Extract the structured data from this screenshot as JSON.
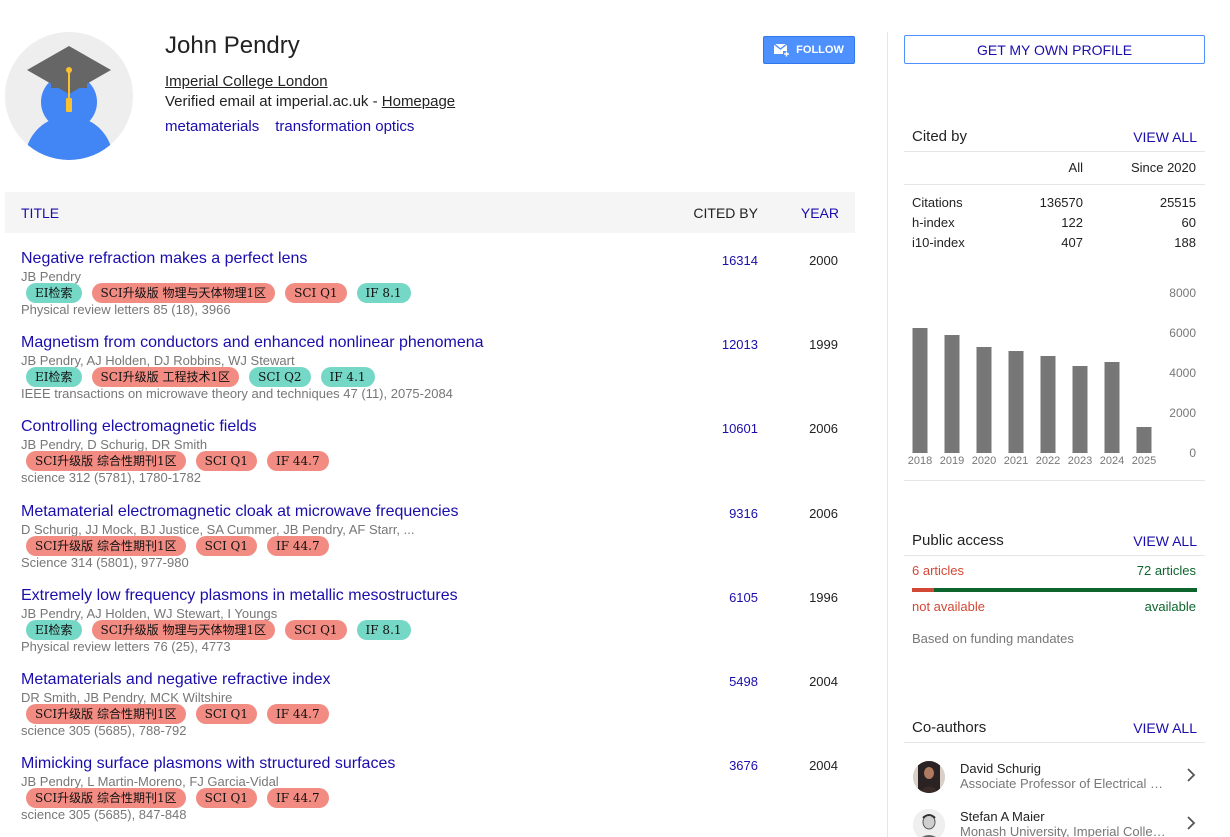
{
  "profile": {
    "name": "John Pendry",
    "affiliation": "Imperial College London",
    "email_text": "Verified email at imperial.ac.uk - ",
    "homepage_label": "Homepage",
    "interests": [
      "metamaterials",
      "transformation optics"
    ],
    "follow_label": "FOLLOW"
  },
  "table": {
    "title_header": "TITLE",
    "cited_header": "CITED BY",
    "year_header": "YEAR",
    "publications": [
      {
        "title": "Negative refraction makes a perfect lens",
        "authors": "JB Pendry",
        "tags": [
          {
            "text": "EI检索",
            "color": "green"
          },
          {
            "text": "SCI升级版 物理与天体物理1区",
            "color": "red"
          },
          {
            "text": "SCI Q1",
            "color": "red"
          },
          {
            "text": "IF 8.1",
            "color": "green"
          }
        ],
        "venue": "Physical review letters 85 (18), 3966",
        "cited_by": "16314",
        "year": "2000"
      },
      {
        "title": "Magnetism from conductors and enhanced nonlinear phenomena",
        "authors": "JB Pendry, AJ Holden, DJ Robbins, WJ Stewart",
        "tags": [
          {
            "text": "EI检索",
            "color": "green"
          },
          {
            "text": "SCI升级版 工程技术1区",
            "color": "red"
          },
          {
            "text": "SCI Q2",
            "color": "green"
          },
          {
            "text": "IF 4.1",
            "color": "green"
          }
        ],
        "venue": "IEEE transactions on microwave theory and techniques 47 (11), 2075-2084",
        "cited_by": "12013",
        "year": "1999"
      },
      {
        "title": "Controlling electromagnetic fields",
        "authors": "JB Pendry, D Schurig, DR Smith",
        "tags": [
          {
            "text": "SCI升级版 综合性期刊1区",
            "color": "red"
          },
          {
            "text": "SCI Q1",
            "color": "red"
          },
          {
            "text": "IF 44.7",
            "color": "red"
          }
        ],
        "venue": "science 312 (5781), 1780-1782",
        "cited_by": "10601",
        "year": "2006"
      },
      {
        "title": "Metamaterial electromagnetic cloak at microwave frequencies",
        "authors": "D Schurig, JJ Mock, BJ Justice, SA Cummer, JB Pendry, AF Starr, ...",
        "tags": [
          {
            "text": "SCI升级版 综合性期刊1区",
            "color": "red"
          },
          {
            "text": "SCI Q1",
            "color": "red"
          },
          {
            "text": "IF 44.7",
            "color": "red"
          }
        ],
        "venue": "Science 314 (5801), 977-980",
        "cited_by": "9316",
        "year": "2006"
      },
      {
        "title": "Extremely low frequency plasmons in metallic mesostructures",
        "authors": "JB Pendry, AJ Holden, WJ Stewart, I Youngs",
        "tags": [
          {
            "text": "EI检索",
            "color": "green"
          },
          {
            "text": "SCI升级版 物理与天体物理1区",
            "color": "red"
          },
          {
            "text": "SCI Q1",
            "color": "red"
          },
          {
            "text": "IF 8.1",
            "color": "green"
          }
        ],
        "venue": "Physical review letters 76 (25), 4773",
        "cited_by": "6105",
        "year": "1996"
      },
      {
        "title": "Metamaterials and negative refractive index",
        "authors": "DR Smith, JB Pendry, MCK Wiltshire",
        "tags": [
          {
            "text": "SCI升级版 综合性期刊1区",
            "color": "red"
          },
          {
            "text": "SCI Q1",
            "color": "red"
          },
          {
            "text": "IF 44.7",
            "color": "red"
          }
        ],
        "venue": "science 305 (5685), 788-792",
        "cited_by": "5498",
        "year": "2004"
      },
      {
        "title": "Mimicking surface plasmons with structured surfaces",
        "authors": "JB Pendry, L Martin-Moreno, FJ Garcia-Vidal",
        "tags": [
          {
            "text": "SCI升级版 综合性期刊1区",
            "color": "red"
          },
          {
            "text": "SCI Q1",
            "color": "red"
          },
          {
            "text": "IF 44.7",
            "color": "red"
          }
        ],
        "venue": "science 305 (5685), 847-848",
        "cited_by": "3676",
        "year": "2004"
      }
    ]
  },
  "sidebar": {
    "own_profile_label": "GET MY OWN PROFILE",
    "cited_by": {
      "label": "Cited by",
      "view_all": "VIEW ALL",
      "col_all": "All",
      "col_since": "Since 2020",
      "rows": [
        {
          "label": "Citations",
          "all": "136570",
          "since": "25515"
        },
        {
          "label": "h-index",
          "all": "122",
          "since": "60"
        },
        {
          "label": "i10-index",
          "all": "407",
          "since": "188"
        }
      ]
    },
    "public_access": {
      "label": "Public access",
      "view_all": "VIEW ALL",
      "not_available_count": "6 articles",
      "available_count": "72 articles",
      "not_available_label": "not available",
      "available_label": "available",
      "note": "Based on funding mandates",
      "not_available_fraction": 0.077
    },
    "coauthors": {
      "label": "Co-authors",
      "view_all": "VIEW ALL",
      "items": [
        {
          "name": "David Schurig",
          "desc": "Associate Professor of Electrical and Computer Engineering"
        },
        {
          "name": "Stefan A Maier",
          "desc": "Monash University, Imperial College London"
        }
      ]
    }
  },
  "chart_data": {
    "type": "bar",
    "title": "",
    "categories": [
      "2018",
      "2019",
      "2020",
      "2021",
      "2022",
      "2023",
      "2024",
      "2025"
    ],
    "values": [
      6250,
      5900,
      5300,
      5100,
      4850,
      4350,
      4550,
      1300
    ],
    "ylim": [
      0,
      8000
    ],
    "yticks": [
      "0",
      "2000",
      "4000",
      "6000",
      "8000"
    ],
    "bar_color": "#777777"
  },
  "colors": {
    "link": "#1a0dab",
    "accent_blue": "#4d90fe",
    "red": "#d14836",
    "green": "#0d652d"
  }
}
